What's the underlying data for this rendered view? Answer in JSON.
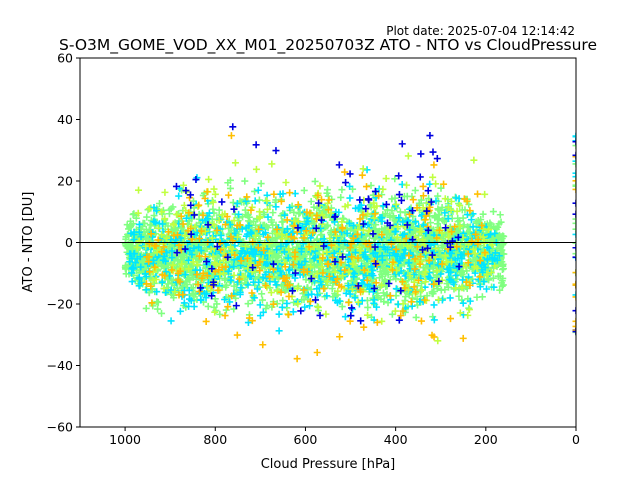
{
  "chart_data": {
    "type": "scatter",
    "title": "S-O3M_GOME_VOD_XX_M01_20250703Z ATO - NTO vs CloudPressure",
    "plot_date": "Plot date: 2025-07-04 12:14:42",
    "xlabel": "Cloud Pressure [hPa]",
    "ylabel": "ATO - NTO [DU]",
    "xlim": [
      1100,
      0
    ],
    "ylim": [
      -60,
      60
    ],
    "x_ticks": [
      1000,
      800,
      600,
      400,
      200,
      0
    ],
    "y_ticks": [
      -60,
      -40,
      -20,
      0,
      20,
      40,
      60
    ],
    "reference_line_y": 0,
    "marker": "+",
    "grid": false,
    "legend": "none",
    "point_colors": [
      "#80ff80",
      "#00e5ff",
      "#ffbf00",
      "#c0ff40",
      "#0000e0"
    ],
    "clusters": [
      {
        "color": "#80ff80",
        "x_range": [
          1000,
          160
        ],
        "y_center": -3,
        "y_spread": 28,
        "count": 2500
      },
      {
        "color": "#00e5ff",
        "x_range": [
          990,
          170
        ],
        "y_center": -4,
        "y_spread": 32,
        "count": 700
      },
      {
        "color": "#c0ff40",
        "x_range": [
          980,
          180
        ],
        "y_center": 0,
        "y_spread": 40,
        "count": 300
      },
      {
        "color": "#ffbf00",
        "x_range": [
          960,
          200
        ],
        "y_center": -5,
        "y_spread": 45,
        "count": 250
      },
      {
        "color": "#0000e0",
        "x_range": [
          900,
          250
        ],
        "y_center": 5,
        "y_spread": 55,
        "count": 90
      }
    ],
    "side_points": {
      "x": 0,
      "y_range": [
        -30,
        35
      ],
      "colors": [
        "#80ff80",
        "#00e5ff",
        "#0000e0",
        "#ffbf00"
      ],
      "count": 40
    }
  }
}
